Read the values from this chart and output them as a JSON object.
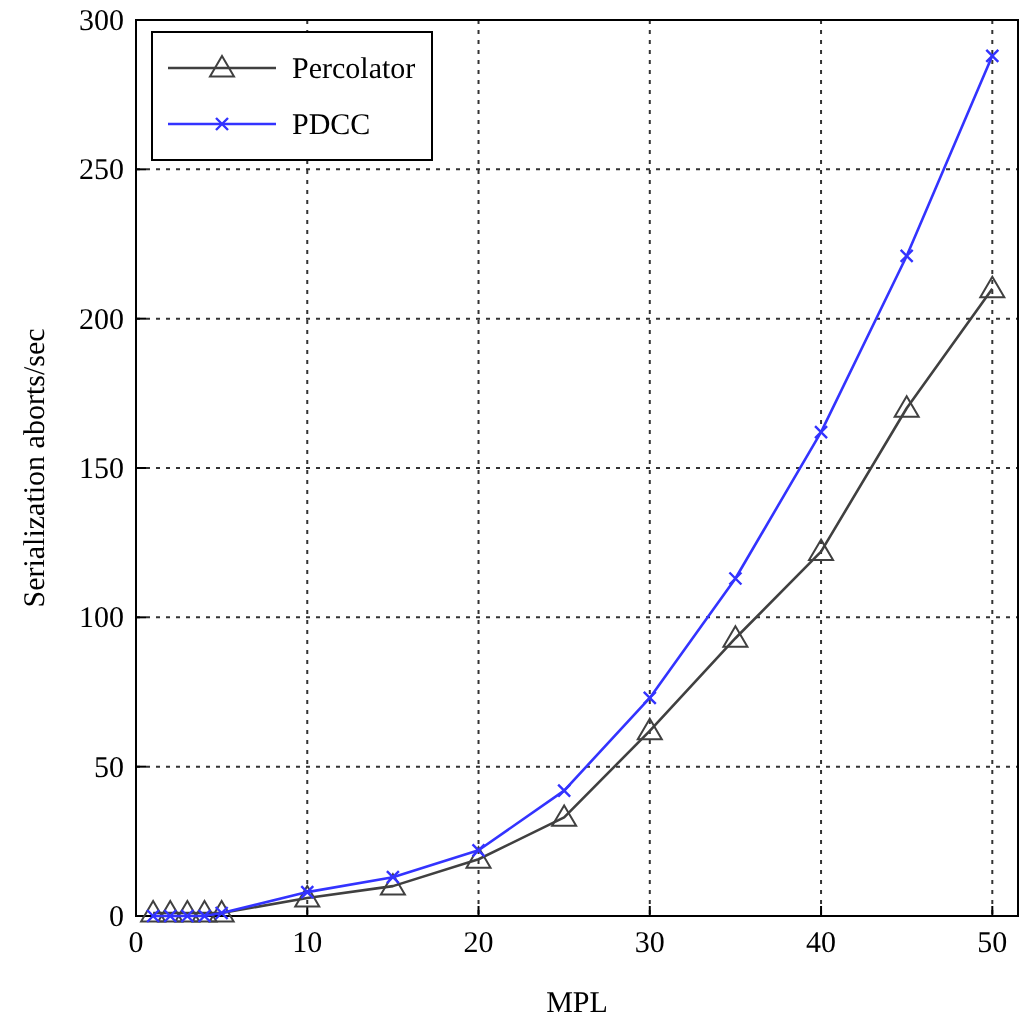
{
  "chart_data": {
    "type": "line",
    "xlabel": "MPL",
    "ylabel": "Serialization aborts/sec",
    "x": [
      1,
      2,
      3,
      4,
      5,
      10,
      15,
      20,
      25,
      30,
      35,
      40,
      45,
      50
    ],
    "series": [
      {
        "name": "Percolator",
        "color": "#404040",
        "marker": "triangle",
        "values": [
          1,
          1,
          1,
          1,
          1,
          6,
          10,
          19,
          33,
          62,
          93,
          122,
          170,
          210
        ]
      },
      {
        "name": "PDCC",
        "color": "#3333ff",
        "marker": "cross",
        "values": [
          0,
          0,
          0,
          0,
          1,
          8,
          13,
          22,
          42,
          73,
          113,
          162,
          221,
          288
        ]
      }
    ],
    "xlim": [
      0,
      51.5
    ],
    "ylim": [
      0,
      300
    ],
    "xticks": [
      0,
      10,
      20,
      30,
      40,
      50
    ],
    "yticks": [
      0,
      50,
      100,
      150,
      200,
      250,
      300
    ],
    "grid": true,
    "legend": "top left",
    "line_style": "solid"
  }
}
